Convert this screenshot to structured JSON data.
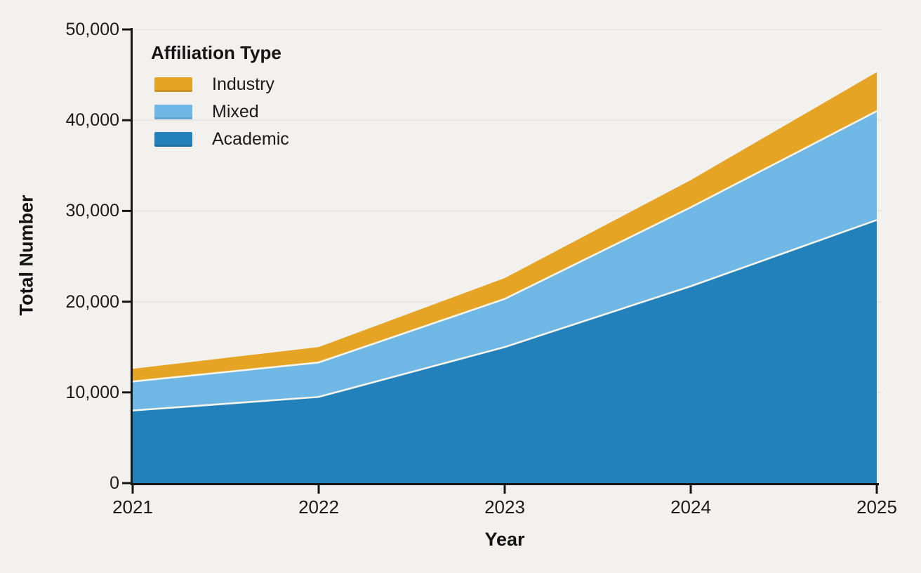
{
  "figure": {
    "background_color": "#f3f1ed",
    "grid_color": "#e7e5e1",
    "axis_color": "#161616",
    "separator_color": "#f7f4ea"
  },
  "chart_data": {
    "type": "area",
    "stacked": true,
    "xlabel": "Year",
    "ylabel": "Total Number",
    "categories": [
      "2021",
      "2022",
      "2023",
      "2024",
      "2025"
    ],
    "series": [
      {
        "name": "Academic",
        "color": "#2280ba",
        "values": [
          8000,
          9500,
          15000,
          21700,
          29000
        ]
      },
      {
        "name": "Mixed",
        "color": "#6fb7e4",
        "values": [
          3200,
          3800,
          5300,
          8700,
          12000
        ]
      },
      {
        "name": "Industry",
        "color": "#e6a424",
        "values": [
          1400,
          1700,
          2300,
          3000,
          4300
        ]
      }
    ],
    "stack_order_bottom_to_top": [
      "Academic",
      "Mixed",
      "Industry"
    ],
    "ylim": [
      0,
      50000
    ],
    "ytick_values": [
      0,
      10000,
      20000,
      30000,
      40000,
      50000
    ],
    "ytick_labels": [
      "0",
      "10,000",
      "20,000",
      "30,000",
      "40,000",
      "50,000"
    ],
    "grid": "horizontal",
    "legend": {
      "title": "Affiliation Type",
      "position": "top-left",
      "items": [
        {
          "label": "Industry",
          "color": "#e6a424"
        },
        {
          "label": "Mixed",
          "color": "#6fb7e4"
        },
        {
          "label": "Academic",
          "color": "#2280ba"
        }
      ]
    }
  }
}
